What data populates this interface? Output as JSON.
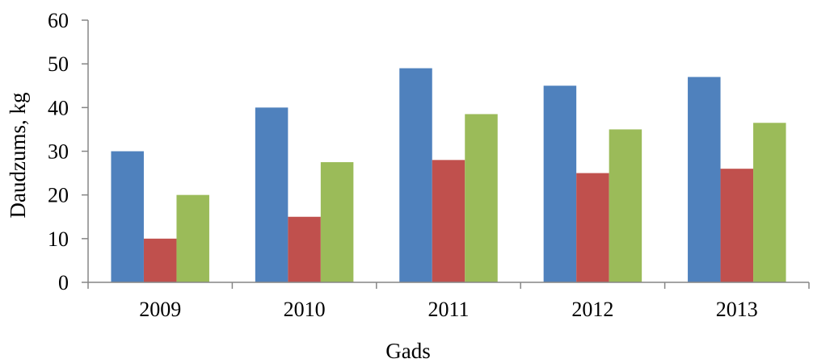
{
  "chart_data": {
    "type": "bar",
    "title": "",
    "xlabel": "Gads",
    "ylabel": "Daudzums, kg",
    "categories": [
      "2009",
      "2010",
      "2011",
      "2012",
      "2013"
    ],
    "ylim": [
      0,
      60
    ],
    "yticks": [
      0,
      10,
      20,
      30,
      40,
      50,
      60
    ],
    "grid": false,
    "legend": "none",
    "series": [
      {
        "values": [
          30,
          40,
          49,
          45,
          47
        ],
        "color": "#4F81BD"
      },
      {
        "values": [
          10,
          15,
          28,
          25,
          26
        ],
        "color": "#C0504D"
      },
      {
        "values": [
          20,
          27.5,
          38.5,
          35,
          36.5
        ],
        "color": "#9BBB59"
      }
    ]
  }
}
